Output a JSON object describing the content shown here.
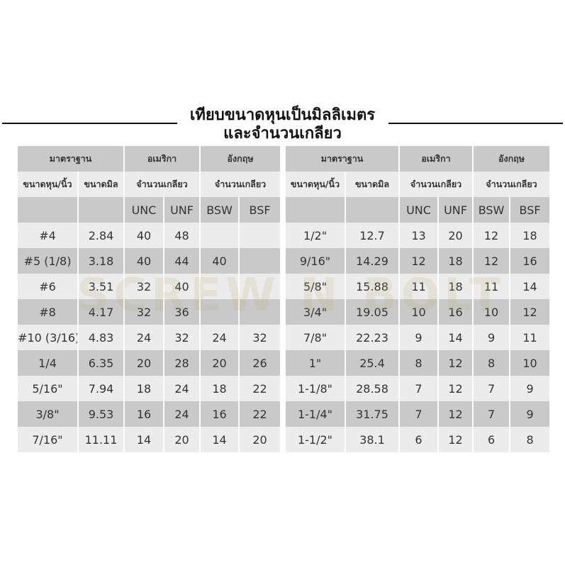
{
  "title": {
    "line1": "เทียบขนาดหุนเป็นมิลลิเมตร",
    "line2": "และจำนวนเกลียว"
  },
  "watermark": "SCREW N BOLT",
  "headers": {
    "standard": "มาตราฐาน",
    "america": "อเมริกา",
    "england": "อังกฤษ",
    "size_inch": "ขนาดหุน/นิ้ว",
    "size_mm": "ขนาดมิล",
    "thread_count": "จำนวนเกลียว",
    "unc": "UNC",
    "unf": "UNF",
    "bsw": "BSW",
    "bsf": "BSF"
  },
  "left_rows": [
    [
      "#4",
      "2.84",
      "40",
      "48",
      "",
      ""
    ],
    [
      "#5 (1/8)",
      "3.18",
      "40",
      "44",
      "40",
      ""
    ],
    [
      "#6",
      "3.51",
      "32",
      "40",
      "",
      ""
    ],
    [
      "#8",
      "4.17",
      "32",
      "36",
      "",
      ""
    ],
    [
      "#10 (3/16)",
      "4.83",
      "24",
      "32",
      "24",
      "32"
    ],
    [
      "1/4",
      "6.35",
      "20",
      "28",
      "20",
      "26"
    ],
    [
      "5/16\"",
      "7.94",
      "18",
      "24",
      "18",
      "22"
    ],
    [
      "3/8\"",
      "9.53",
      "16",
      "24",
      "16",
      "22"
    ],
    [
      "7/16\"",
      "11.11",
      "14",
      "20",
      "14",
      "20"
    ]
  ],
  "right_rows": [
    [
      "1/2\"",
      "12.7",
      "13",
      "20",
      "12",
      "18"
    ],
    [
      "9/16\"",
      "14.29",
      "12",
      "18",
      "12",
      "16"
    ],
    [
      "5/8\"",
      "15.88",
      "11",
      "18",
      "11",
      "14"
    ],
    [
      "3/4\"",
      "19.05",
      "10",
      "16",
      "10",
      "12"
    ],
    [
      "7/8\"",
      "22.23",
      "9",
      "14",
      "9",
      "11"
    ],
    [
      "1\"",
      "25.4",
      "8",
      "12",
      "8",
      "10"
    ],
    [
      "1-1/8\"",
      "28.58",
      "7",
      "12",
      "7",
      "9"
    ],
    [
      "1-1/4\"",
      "31.75",
      "7",
      "12",
      "7",
      "9"
    ],
    [
      "1-1/2\"",
      "38.1",
      "6",
      "12",
      "6",
      "8"
    ]
  ]
}
